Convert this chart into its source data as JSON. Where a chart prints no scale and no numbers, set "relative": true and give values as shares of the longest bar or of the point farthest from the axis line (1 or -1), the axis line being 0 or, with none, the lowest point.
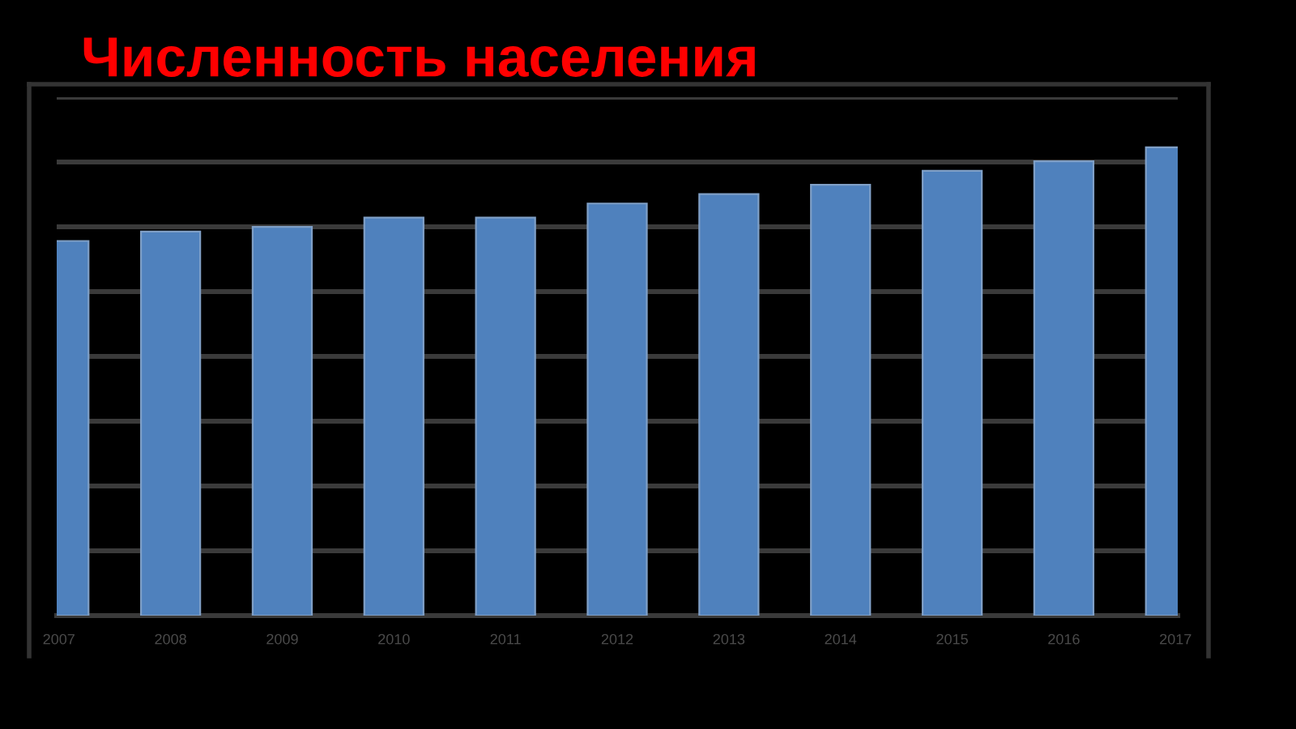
{
  "chart_data": {
    "type": "bar",
    "title": "Численность населения",
    "categories": [
      "2007",
      "2008",
      "2009",
      "2010",
      "2011",
      "2012",
      "2013",
      "2014",
      "2015",
      "2016",
      "2017"
    ],
    "values": [
      0.8,
      0.82,
      0.83,
      0.85,
      0.85,
      0.88,
      0.9,
      0.92,
      0.95,
      0.97,
      1
    ],
    "color": "#4f81bd",
    "relative": true,
    "grid": "y"
  }
}
